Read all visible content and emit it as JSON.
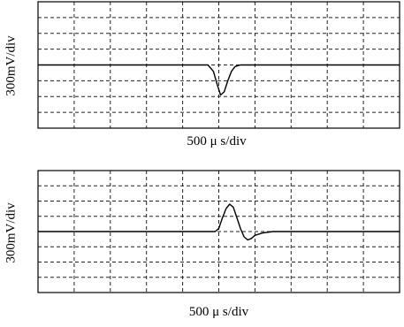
{
  "chart_data": [
    {
      "type": "line",
      "title": "",
      "xlabel": "500 μ s/div",
      "ylabel": "300mV/div",
      "grid": true,
      "grid_divisions": {
        "x": 10,
        "y": 8
      },
      "xlim": [
        0,
        10
      ],
      "ylim": [
        -4,
        4
      ],
      "series": [
        {
          "x": [
            0,
            4.7,
            4.85,
            4.95,
            5.05,
            5.15,
            5.25,
            5.35,
            5.45,
            5.6,
            10
          ],
          "y": [
            0,
            0,
            -0.4,
            -1.2,
            -1.9,
            -1.7,
            -1.0,
            -0.4,
            -0.1,
            0,
            0
          ]
        }
      ]
    },
    {
      "type": "line",
      "title": "",
      "xlabel": "500 μ s/div",
      "ylabel": "300mV/div",
      "grid": true,
      "grid_divisions": {
        "x": 10,
        "y": 8
      },
      "xlim": [
        0,
        10
      ],
      "ylim": [
        -4,
        4
      ],
      "series": [
        {
          "x": [
            0,
            4.9,
            5.0,
            5.1,
            5.2,
            5.3,
            5.4,
            5.5,
            5.6,
            5.7,
            5.8,
            5.9,
            6.0,
            6.2,
            6.5,
            10
          ],
          "y": [
            0,
            0,
            0.2,
            0.9,
            1.5,
            1.8,
            1.6,
            0.9,
            0.2,
            -0.35,
            -0.55,
            -0.45,
            -0.25,
            -0.1,
            0,
            0
          ]
        }
      ]
    }
  ]
}
